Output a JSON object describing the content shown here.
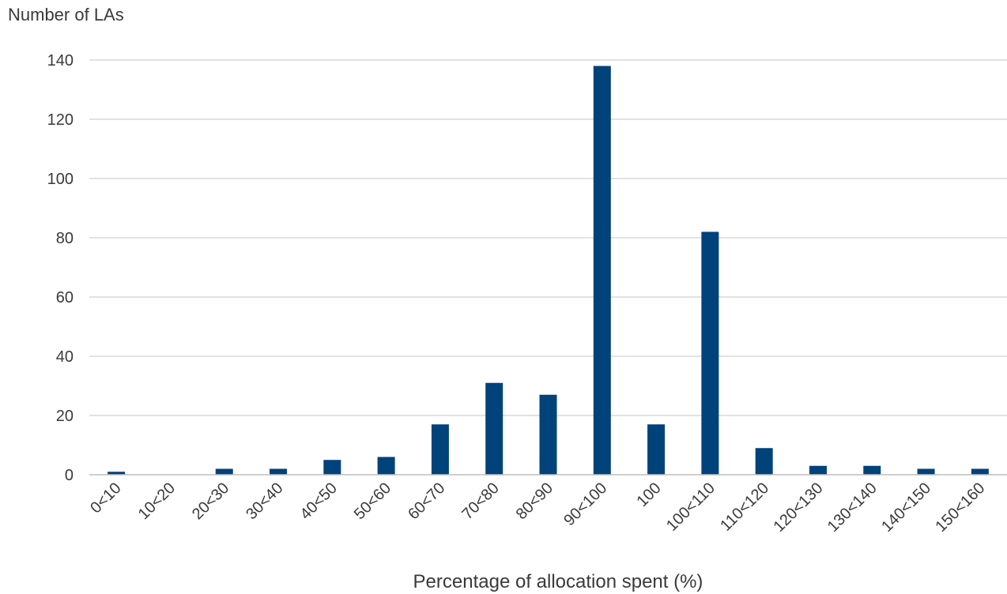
{
  "chart_data": {
    "type": "bar",
    "title": "",
    "ylabel": "Number of LAs",
    "xlabel": "Percentage of allocation spent (%)",
    "ylim": [
      0,
      140
    ],
    "yticks": [
      0,
      20,
      40,
      60,
      80,
      100,
      120,
      140
    ],
    "grid": true,
    "legend": "none",
    "bar_color": "#00427A",
    "categories": [
      "0<10",
      "10<20",
      "20<30",
      "30<40",
      "40<50",
      "50<60",
      "60<70",
      "70<80",
      "80<90",
      "90<100",
      "100",
      "100<110",
      "110<120",
      "120<130",
      "130<140",
      "140<150",
      "150<160"
    ],
    "values": [
      1,
      0,
      2,
      2,
      5,
      6,
      17,
      31,
      27,
      138,
      17,
      82,
      9,
      3,
      3,
      2,
      2
    ]
  }
}
